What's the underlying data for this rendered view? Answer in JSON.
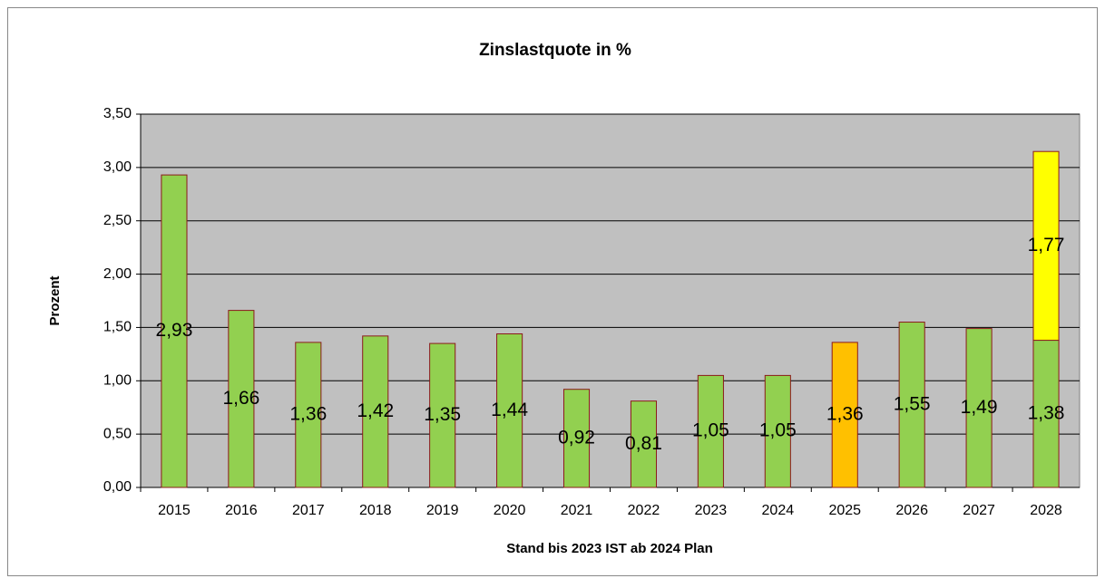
{
  "chart_data": {
    "type": "bar",
    "stacked": true,
    "title": "Zinslastquote in %",
    "ylabel": "Prozent",
    "xlabel": "Stand bis 2023 IST ab 2024 Plan",
    "categories": [
      "2015",
      "2016",
      "2017",
      "2018",
      "2019",
      "2020",
      "2021",
      "2022",
      "2023",
      "2024",
      "2025",
      "2026",
      "2027",
      "2028"
    ],
    "series": [
      {
        "colors": [
          "#92d050",
          "#92d050",
          "#92d050",
          "#92d050",
          "#92d050",
          "#92d050",
          "#92d050",
          "#92d050",
          "#92d050",
          "#92d050",
          "#ffc000",
          "#92d050",
          "#92d050",
          "#92d050"
        ],
        "values": [
          2.93,
          1.66,
          1.36,
          1.42,
          1.35,
          1.44,
          0.92,
          0.81,
          1.05,
          1.05,
          1.36,
          1.55,
          1.49,
          1.38
        ],
        "value_labels": [
          "2,93",
          "1,66",
          "1,36",
          "1,42",
          "1,35",
          "1,44",
          "0,92",
          "0,81",
          "1,05",
          "1,05",
          "1,36",
          "1,55",
          "1,49",
          "1,38"
        ]
      },
      {
        "color": "#ffff00",
        "values": [
          null,
          null,
          null,
          null,
          null,
          null,
          null,
          null,
          null,
          null,
          null,
          null,
          null,
          1.77
        ],
        "value_labels": [
          null,
          null,
          null,
          null,
          null,
          null,
          null,
          null,
          null,
          null,
          null,
          null,
          null,
          "1,77"
        ]
      }
    ],
    "ylim": [
      0,
      3.5
    ],
    "yticks": [
      {
        "value": 0,
        "label": "0,00"
      },
      {
        "value": 0.5,
        "label": "0,50"
      },
      {
        "value": 1,
        "label": "1,00"
      },
      {
        "value": 1.5,
        "label": "1,50"
      },
      {
        "value": 2,
        "label": "2,00"
      },
      {
        "value": 2.5,
        "label": "2,50"
      },
      {
        "value": 3,
        "label": "3,00"
      },
      {
        "value": 3.5,
        "label": "3,50"
      }
    ],
    "grid": true
  }
}
